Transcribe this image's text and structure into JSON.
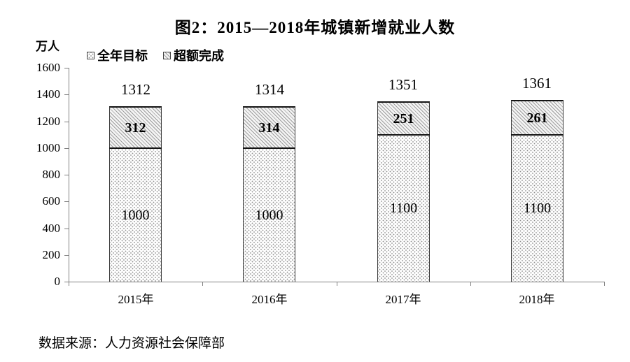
{
  "figure": {
    "title": "图2：2015—2018年城镇新增就业人数",
    "unit_label": "万人",
    "source_note": "数据来源：人力资源社会保障部"
  },
  "legend": {
    "items": [
      {
        "label": "全年目标",
        "pattern": "dots"
      },
      {
        "label": "超额完成",
        "pattern": "hatch"
      }
    ]
  },
  "chart_data": {
    "type": "bar",
    "stacked": true,
    "title": "图2：2015—2018年城镇新增就业人数",
    "xlabel": "",
    "ylabel": "万人",
    "categories": [
      "2015年",
      "2016年",
      "2017年",
      "2018年"
    ],
    "series": [
      {
        "name": "全年目标",
        "pattern": "dots",
        "values": [
          1000,
          1000,
          1100,
          1100
        ]
      },
      {
        "name": "超额完成",
        "pattern": "hatch",
        "values": [
          312,
          314,
          251,
          261
        ]
      }
    ],
    "totals": [
      1312,
      1314,
      1351,
      1361
    ],
    "ylim": [
      0,
      1600
    ],
    "yticks": [
      0,
      200,
      400,
      600,
      800,
      1000,
      1200,
      1400,
      1600
    ],
    "grid": false,
    "legend_position": "top-left"
  },
  "colors": {
    "text": "#000000",
    "axis": "#808080",
    "bar_border": "#3a3a3a",
    "divider": "#141414",
    "hatch_line": "#9d9d9d",
    "dot": "#8c8c8c",
    "background": "#ffffff"
  }
}
